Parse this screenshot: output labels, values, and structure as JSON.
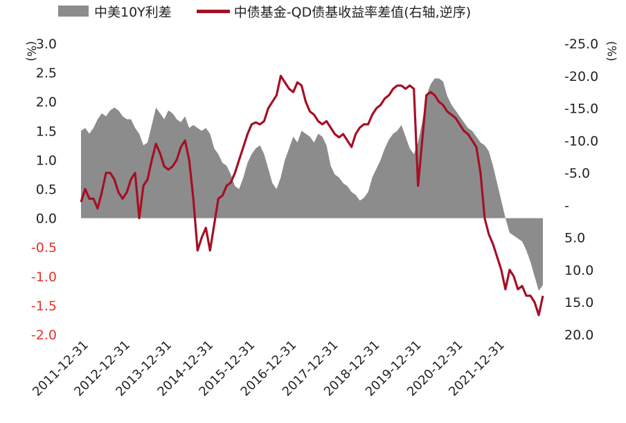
{
  "legend": {
    "area_label": "中美10Y利差",
    "line_label": "中债基金-QD债基收益率差值(右轴,逆序)"
  },
  "units": {
    "left": "(%)",
    "right": "(%)"
  },
  "chart_data": {
    "type": "area+line",
    "x_tick_labels": [
      "2011-12-31",
      "2012-12-31",
      "2013-12-31",
      "2014-12-31",
      "2015-12-31",
      "2016-12-31",
      "2017-12-31",
      "2018-12-31",
      "2019-12-31",
      "2020-12-31",
      "2021-12-31"
    ],
    "x_range": [
      2011.8,
      2022.9
    ],
    "left_axis": {
      "ylim": [
        -2.0,
        3.0
      ],
      "ticks": [
        "3.0",
        "2.5",
        "2.0",
        "1.5",
        "1.0",
        "0.5",
        "0.0",
        "-0.5",
        "-1.0",
        "-1.5",
        "-2.0"
      ],
      "tick_values": [
        3.0,
        2.5,
        2.0,
        1.5,
        1.0,
        0.5,
        0.0,
        -0.5,
        -1.0,
        -1.5,
        -2.0
      ],
      "negative_color": "#e8302a"
    },
    "right_axis": {
      "inverted": true,
      "ylim": [
        -25.0,
        20.0
      ],
      "ticks": [
        "-25.0",
        "-20.0",
        "-15.0",
        "-10.0",
        "-5.0",
        "-",
        "5.0",
        "10.0",
        "15.0",
        "20.0"
      ],
      "tick_values": [
        -25,
        -20,
        -15,
        -10,
        -5,
        0,
        5,
        10,
        15,
        20
      ]
    },
    "series": [
      {
        "name": "中美10Y利差",
        "kind": "area",
        "color": "#8c8c8c",
        "axis": "left",
        "x": [
          2011.8,
          2011.9,
          2012.0,
          2012.1,
          2012.2,
          2012.3,
          2012.4,
          2012.5,
          2012.6,
          2012.7,
          2012.8,
          2012.9,
          2013.0,
          2013.1,
          2013.2,
          2013.3,
          2013.4,
          2013.5,
          2013.6,
          2013.7,
          2013.8,
          2013.9,
          2014.0,
          2014.1,
          2014.2,
          2014.3,
          2014.4,
          2014.5,
          2014.6,
          2014.7,
          2014.8,
          2014.9,
          2015.0,
          2015.1,
          2015.2,
          2015.3,
          2015.4,
          2015.5,
          2015.6,
          2015.7,
          2015.8,
          2015.9,
          2016.0,
          2016.1,
          2016.2,
          2016.3,
          2016.4,
          2016.5,
          2016.6,
          2016.7,
          2016.8,
          2016.9,
          2017.0,
          2017.1,
          2017.2,
          2017.3,
          2017.4,
          2017.5,
          2017.6,
          2017.7,
          2017.8,
          2017.9,
          2018.0,
          2018.1,
          2018.2,
          2018.3,
          2018.4,
          2018.5,
          2018.6,
          2018.7,
          2018.8,
          2018.9,
          2019.0,
          2019.1,
          2019.2,
          2019.3,
          2019.4,
          2019.5,
          2019.6,
          2019.7,
          2019.8,
          2019.9,
          2020.0,
          2020.1,
          2020.2,
          2020.3,
          2020.4,
          2020.5,
          2020.6,
          2020.7,
          2020.8,
          2020.9,
          2021.0,
          2021.1,
          2021.2,
          2021.3,
          2021.4,
          2021.5,
          2021.6,
          2021.7,
          2021.8,
          2021.9,
          2022.0,
          2022.1,
          2022.2,
          2022.3,
          2022.4,
          2022.5,
          2022.6,
          2022.7,
          2022.8,
          2022.9
        ],
        "values": [
          1.5,
          1.55,
          1.45,
          1.55,
          1.7,
          1.8,
          1.75,
          1.85,
          1.9,
          1.85,
          1.75,
          1.7,
          1.7,
          1.55,
          1.45,
          1.25,
          1.3,
          1.6,
          1.9,
          1.8,
          1.7,
          1.85,
          1.8,
          1.7,
          1.65,
          1.75,
          1.55,
          1.6,
          1.55,
          1.5,
          1.55,
          1.45,
          1.2,
          1.1,
          0.95,
          0.9,
          0.75,
          0.55,
          0.5,
          0.7,
          0.95,
          1.1,
          1.2,
          1.25,
          1.1,
          0.85,
          0.6,
          0.5,
          0.7,
          1.0,
          1.2,
          1.4,
          1.3,
          1.5,
          1.45,
          1.4,
          1.3,
          1.45,
          1.4,
          1.25,
          0.9,
          0.75,
          0.7,
          0.6,
          0.55,
          0.45,
          0.4,
          0.3,
          0.35,
          0.45,
          0.7,
          0.85,
          1.0,
          1.2,
          1.35,
          1.45,
          1.5,
          1.6,
          1.4,
          1.2,
          1.1,
          1.3,
          1.65,
          2.1,
          2.3,
          2.4,
          2.4,
          2.35,
          2.1,
          1.95,
          1.85,
          1.75,
          1.65,
          1.55,
          1.5,
          1.4,
          1.3,
          1.25,
          1.15,
          0.9,
          0.6,
          0.3,
          0.0,
          -0.25,
          -0.3,
          -0.35,
          -0.4,
          -0.55,
          -0.75,
          -1.0,
          -1.25,
          -1.15
        ]
      },
      {
        "name": "中债基金-QD债基收益率差值(右轴,逆序)",
        "kind": "line",
        "color": "#a50f24",
        "axis": "right",
        "x": [
          2011.8,
          2011.9,
          2012.0,
          2012.1,
          2012.2,
          2012.3,
          2012.4,
          2012.5,
          2012.6,
          2012.7,
          2012.8,
          2012.9,
          2013.0,
          2013.1,
          2013.2,
          2013.3,
          2013.4,
          2013.5,
          2013.6,
          2013.7,
          2013.8,
          2013.9,
          2014.0,
          2014.1,
          2014.2,
          2014.3,
          2014.4,
          2014.5,
          2014.6,
          2014.7,
          2014.8,
          2014.9,
          2015.0,
          2015.1,
          2015.2,
          2015.3,
          2015.4,
          2015.5,
          2015.6,
          2015.7,
          2015.8,
          2015.9,
          2016.0,
          2016.1,
          2016.2,
          2016.3,
          2016.4,
          2016.5,
          2016.6,
          2016.7,
          2016.8,
          2016.9,
          2017.0,
          2017.1,
          2017.2,
          2017.3,
          2017.4,
          2017.5,
          2017.6,
          2017.7,
          2017.8,
          2017.9,
          2018.0,
          2018.1,
          2018.2,
          2018.3,
          2018.4,
          2018.5,
          2018.6,
          2018.7,
          2018.8,
          2018.9,
          2019.0,
          2019.1,
          2019.2,
          2019.3,
          2019.4,
          2019.5,
          2019.6,
          2019.7,
          2019.8,
          2019.9,
          2020.0,
          2020.1,
          2020.2,
          2020.3,
          2020.4,
          2020.5,
          2020.6,
          2020.7,
          2020.8,
          2020.9,
          2021.0,
          2021.1,
          2021.2,
          2021.3,
          2021.4,
          2021.5,
          2021.6,
          2021.7,
          2021.8,
          2021.9,
          2022.0,
          2022.1,
          2022.2,
          2022.3,
          2022.4,
          2022.5,
          2022.6,
          2022.7,
          2022.8,
          2022.9
        ],
        "values": [
          -0.5,
          -2.5,
          -1.0,
          -1.0,
          0.5,
          -2.0,
          -5.0,
          -5.0,
          -4.0,
          -2.0,
          -1.0,
          -2.0,
          -4.0,
          -5.0,
          2.0,
          -3.0,
          -4.0,
          -7.0,
          -9.5,
          -8.0,
          -6.0,
          -5.5,
          -6.0,
          -7.0,
          -9.0,
          -10.0,
          -7.0,
          -1.0,
          7.0,
          5.0,
          3.5,
          7.0,
          3.0,
          -1.0,
          -1.5,
          -3.0,
          -3.5,
          -5.0,
          -7.0,
          -9.0,
          -11.0,
          -12.5,
          -12.8,
          -12.5,
          -13.0,
          -15.0,
          -16.0,
          -17.0,
          -20.0,
          -19.0,
          -18.0,
          -17.5,
          -19.0,
          -18.5,
          -16.0,
          -14.5,
          -14.0,
          -13.0,
          -12.5,
          -13.0,
          -12.0,
          -11.0,
          -10.5,
          -11.0,
          -10.0,
          -9.0,
          -11.0,
          -12.0,
          -12.5,
          -12.5,
          -14.0,
          -15.0,
          -15.5,
          -16.5,
          -17.0,
          -18.0,
          -18.5,
          -18.5,
          -18.0,
          -18.5,
          -18.0,
          -3.0,
          -10.0,
          -17.0,
          -17.5,
          -17.0,
          -16.0,
          -15.5,
          -14.5,
          -14.0,
          -13.5,
          -12.5,
          -11.5,
          -11.0,
          -10.0,
          -9.0,
          -5.0,
          2.0,
          4.5,
          6.0,
          8.0,
          10.0,
          13.0,
          10.0,
          11.0,
          13.0,
          12.5,
          14.0,
          14.0,
          15.0,
          17.0,
          14.0
        ]
      }
    ]
  }
}
